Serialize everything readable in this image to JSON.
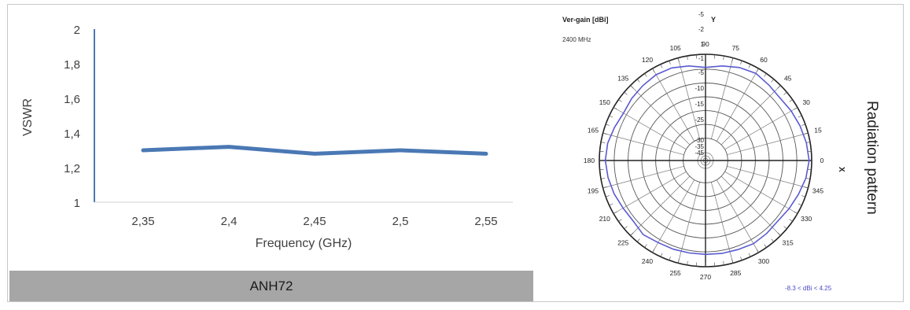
{
  "chart_data": [
    {
      "type": "line",
      "xlabel": "Frequency (GHz)",
      "ylabel": "VSWR",
      "categories": [
        "2,35",
        "2,4",
        "2,45",
        "2,5",
        "2,55"
      ],
      "series": [
        {
          "values": [
            1.3,
            1.32,
            1.28,
            1.3,
            1.28
          ]
        }
      ],
      "ylim": [
        1,
        2
      ],
      "yticks": [
        "1",
        "1,2",
        "1,4",
        "1,6",
        "1,8",
        "2"
      ],
      "grid": false,
      "line_color": "#4a78b4"
    },
    {
      "type": "polar",
      "title": "Ver-gain [dBi]",
      "subtitle": "2400 MHz",
      "x_axis_label": "X",
      "y_axis_label": "Y",
      "angle_labels": [
        "0",
        "15",
        "30",
        "45",
        "60",
        "75",
        "90",
        "105",
        "120",
        "135",
        "150",
        "165",
        "180",
        "195",
        "210",
        "225",
        "240",
        "255",
        "270",
        "285",
        "300",
        "315",
        "330",
        "345"
      ],
      "radial_labels": [
        "-5",
        "-2",
        "1",
        "-1",
        "-5",
        "-10",
        "-15",
        "-25",
        "-30",
        "-35",
        "-45"
      ],
      "range_note": "-8.3 < dBi < 4.25",
      "pattern_color": "#5a5ad0",
      "pattern": {
        "angles_deg": [
          0,
          10,
          20,
          30,
          40,
          50,
          60,
          70,
          80,
          90,
          100,
          110,
          120,
          130,
          140,
          150,
          160,
          170,
          180,
          190,
          200,
          210,
          220,
          230,
          240,
          250,
          260,
          270,
          280,
          290,
          300,
          310,
          320,
          330,
          340,
          350
        ],
        "gain_dbi": [
          3.8,
          3.2,
          2.4,
          1.6,
          0.8,
          1.4,
          2.4,
          1.6,
          0.2,
          -1.2,
          0.2,
          1.4,
          1.6,
          1.0,
          0.4,
          -0.4,
          0.6,
          1.8,
          2.2,
          1.6,
          0.8,
          -0.2,
          -0.6,
          0.6,
          -0.4,
          -0.6,
          -0.8,
          -0.8,
          -0.6,
          -0.4,
          0.2,
          -0.2,
          -0.6,
          0.4,
          1.6,
          3.0
        ],
        "rlim": [
          -45,
          5
        ]
      }
    }
  ],
  "caption": "ANH72",
  "side_label": "Radiation pattern"
}
